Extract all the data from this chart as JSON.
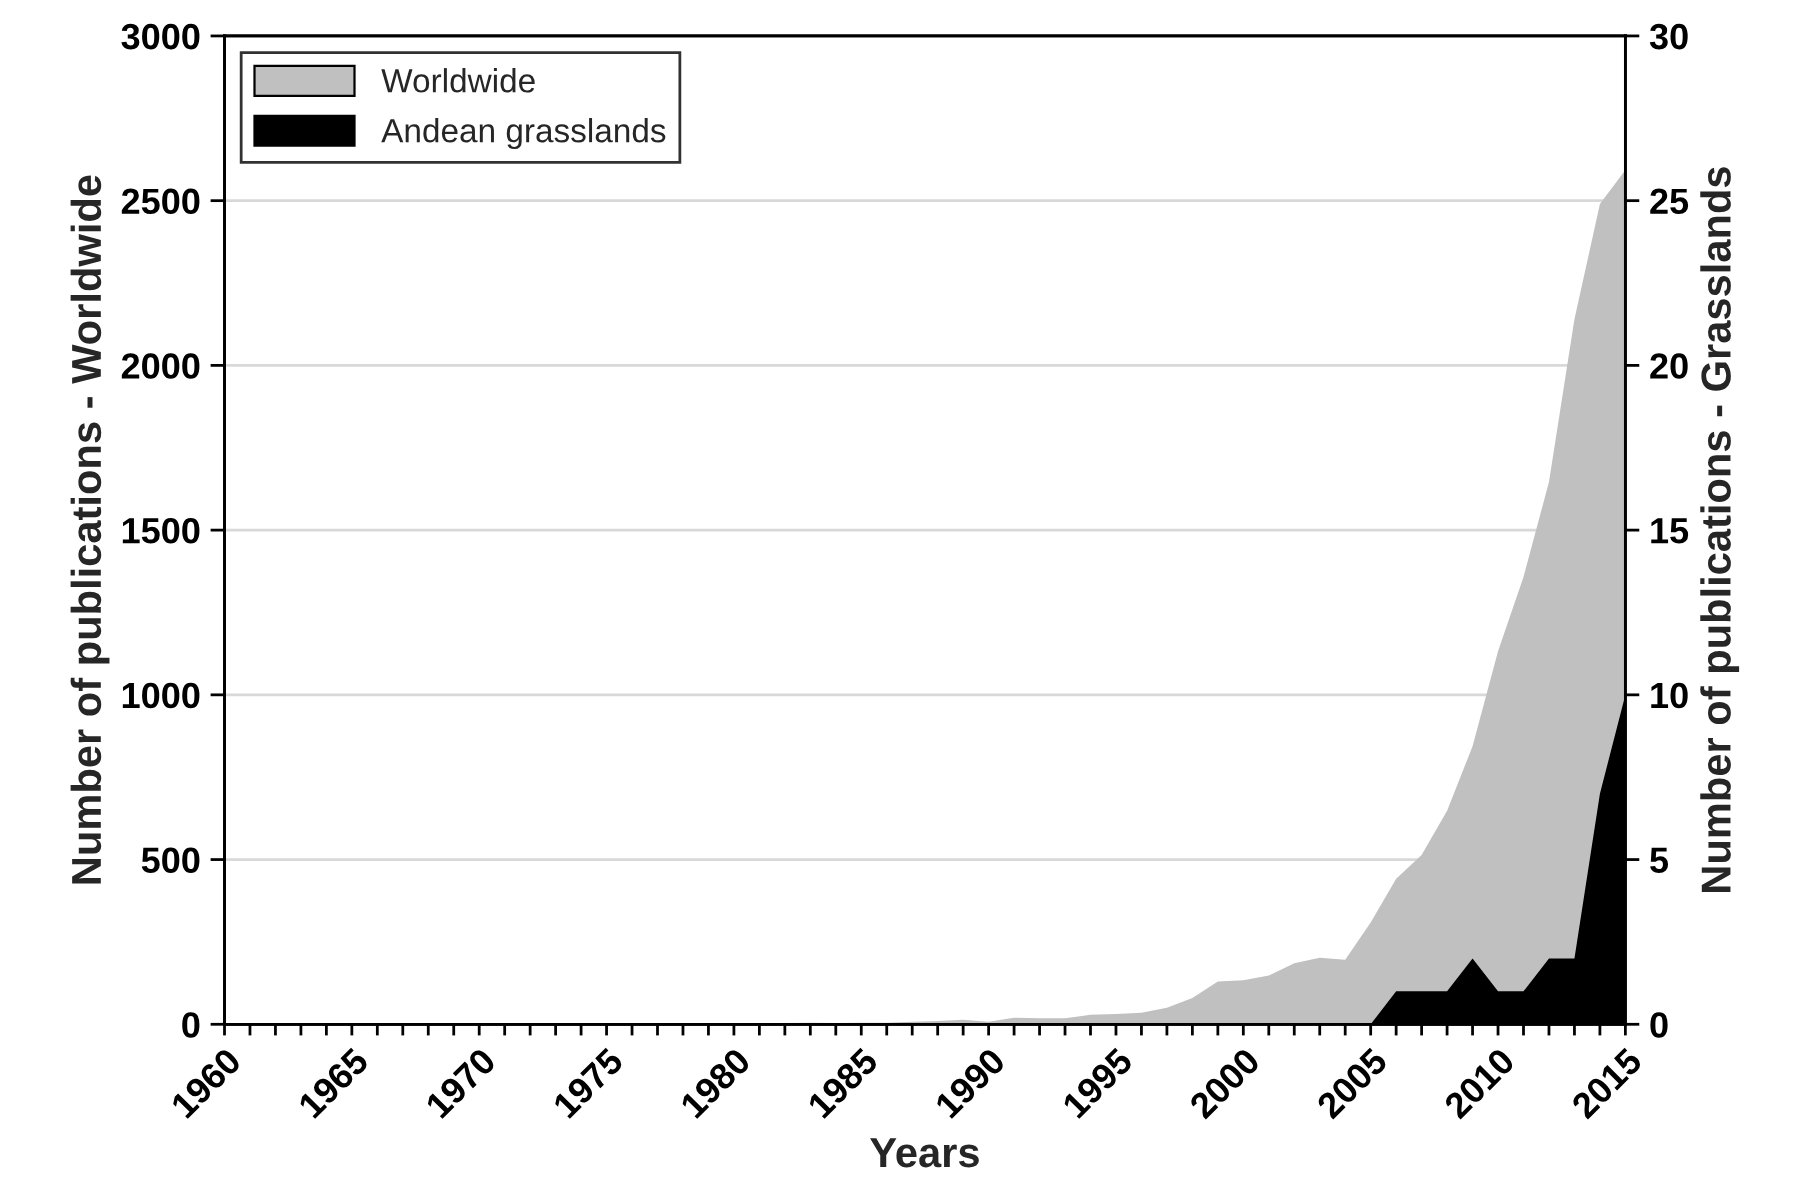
{
  "chart_data": {
    "type": "area",
    "xlabel": "Years",
    "ylabel": "Number of publications - Worldwide",
    "y2label": "Number of publications - Grasslands",
    "series": [
      {
        "name": "Worldwide",
        "color": "#c0c0c0",
        "x": [
          1965,
          1966,
          1967,
          1968,
          1969,
          1970,
          1971,
          1972,
          1973,
          1974,
          1975,
          1976,
          1977,
          1978,
          1979,
          1980,
          1981,
          1982,
          1983,
          1984,
          1985,
          1986,
          1987,
          1988,
          1989,
          1990,
          1991,
          1992,
          1993,
          1994,
          1995,
          1996,
          1997,
          1998,
          1999,
          2000,
          2001,
          2002,
          2003,
          2004,
          2005,
          2006,
          2007,
          2008,
          2009,
          2010,
          2011,
          2012,
          2013,
          2014,
          2015
        ],
        "values": [
          2,
          2,
          2,
          3,
          3,
          3,
          3,
          3,
          4,
          4,
          4,
          4,
          4,
          3,
          4,
          4,
          4,
          4,
          5,
          4,
          5,
          5,
          8,
          10,
          14,
          8,
          20,
          18,
          18,
          29,
          31,
          35,
          50,
          80,
          130,
          134,
          148,
          185,
          202,
          196,
          309,
          442,
          514,
          648,
          844,
          1132,
          1358,
          1646,
          2140,
          2490,
          2593
        ]
      },
      {
        "name": "Andean grasslands",
        "color": "#000000",
        "axis": "y2",
        "x": [
          2005,
          2006,
          2007,
          2008,
          2009,
          2010,
          2011,
          2012,
          2013,
          2014,
          2015
        ],
        "values": [
          0,
          1,
          1,
          1,
          2,
          1,
          1,
          2,
          2,
          7,
          10
        ]
      }
    ],
    "xlim": [
      1960,
      2015
    ],
    "xticks": [
      1960,
      {
        "value": 1961,
        "label": null
      },
      {
        "value": 1962,
        "label": null
      },
      {
        "value": 1963,
        "label": null
      },
      {
        "value": 1964,
        "label": null
      },
      1965,
      {
        "value": 1966,
        "label": null
      },
      {
        "value": 1967,
        "label": null
      },
      {
        "value": 1968,
        "label": null
      },
      {
        "value": 1969,
        "label": null
      },
      1970,
      {
        "value": 1971,
        "label": null
      },
      {
        "value": 1972,
        "label": null
      },
      {
        "value": 1973,
        "label": null
      },
      {
        "value": 1974,
        "label": null
      },
      1975,
      {
        "value": 1976,
        "label": null
      },
      {
        "value": 1977,
        "label": null
      },
      {
        "value": 1978,
        "label": null
      },
      {
        "value": 1979,
        "label": null
      },
      1980,
      {
        "value": 1981,
        "label": null
      },
      {
        "value": 1982,
        "label": null
      },
      {
        "value": 1983,
        "label": null
      },
      {
        "value": 1984,
        "label": null
      },
      1985,
      {
        "value": 1986,
        "label": null
      },
      {
        "value": 1987,
        "label": null
      },
      {
        "value": 1988,
        "label": null
      },
      {
        "value": 1989,
        "label": null
      },
      1990,
      {
        "value": 1991,
        "label": null
      },
      {
        "value": 1992,
        "label": null
      },
      {
        "value": 1993,
        "label": null
      },
      {
        "value": 1994,
        "label": null
      },
      1995,
      {
        "value": 1996,
        "label": null
      },
      {
        "value": 1997,
        "label": null
      },
      {
        "value": 1998,
        "label": null
      },
      {
        "value": 1999,
        "label": null
      },
      2000,
      {
        "value": 2001,
        "label": null
      },
      {
        "value": 2002,
        "label": null
      },
      {
        "value": 2003,
        "label": null
      },
      {
        "value": 2004,
        "label": null
      },
      2005,
      {
        "value": 2006,
        "label": null
      },
      {
        "value": 2007,
        "label": null
      },
      {
        "value": 2008,
        "label": null
      },
      {
        "value": 2009,
        "label": null
      },
      2010,
      {
        "value": 2011,
        "label": null
      },
      {
        "value": 2012,
        "label": null
      },
      {
        "value": 2013,
        "label": null
      },
      {
        "value": 2014,
        "label": null
      },
      2015
    ],
    "ylim": [
      0,
      3000
    ],
    "yticks": [
      0,
      500,
      1000,
      1500,
      2000,
      2500,
      3000
    ],
    "y2lim": [
      0,
      30
    ],
    "y2ticks": [
      0,
      5,
      10,
      15,
      20,
      25,
      30
    ],
    "grid": "y",
    "legend": "top left"
  }
}
